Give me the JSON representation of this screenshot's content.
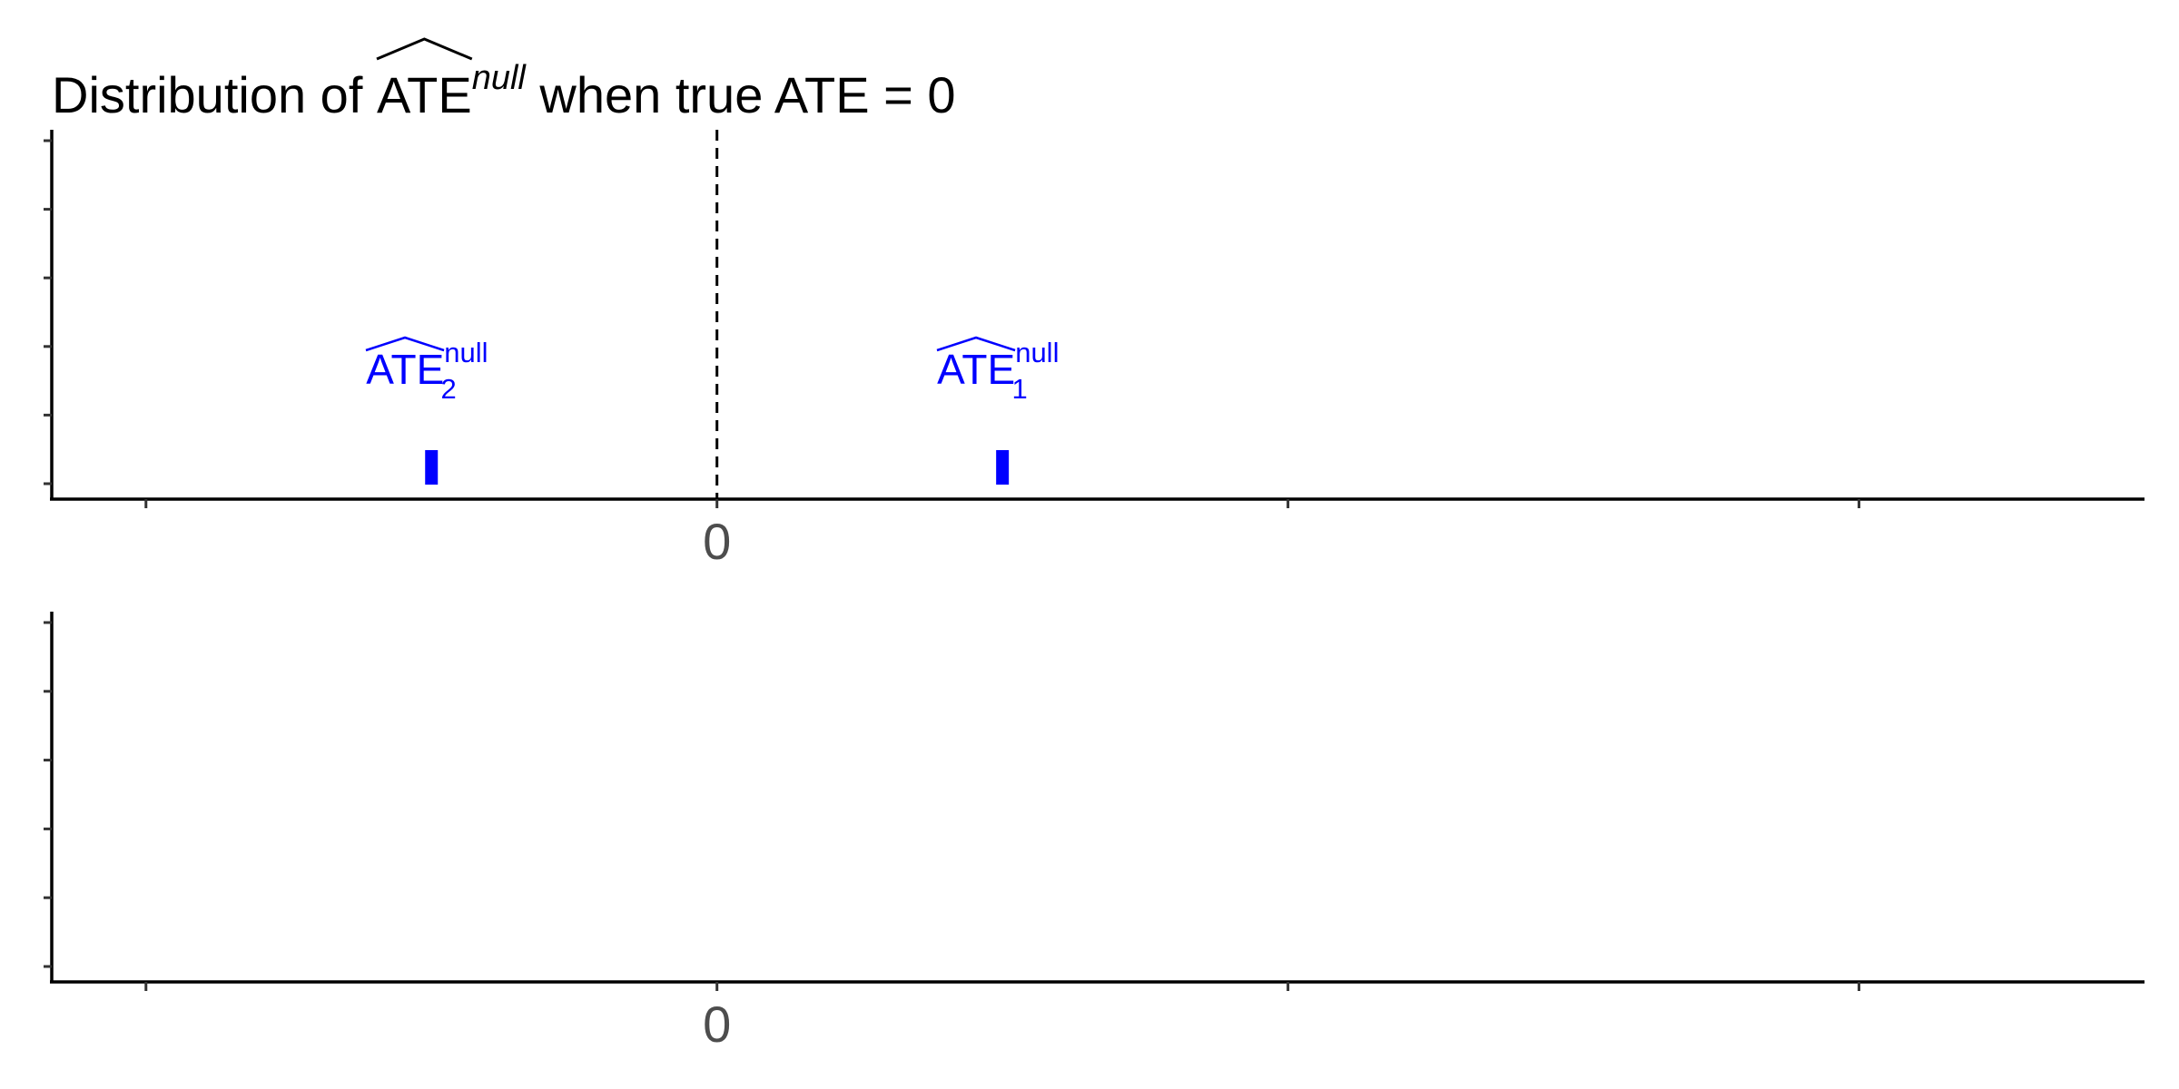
{
  "chart_data": [
    {
      "type": "scatter",
      "title": {
        "prefix": "Distribution of ",
        "hat_text": "ATE",
        "superscript": "null",
        "suffix": " when true ATE = 0"
      },
      "x_ticks": [
        -1,
        0,
        1,
        2
      ],
      "x_tick_labels": [
        "",
        "0",
        "",
        ""
      ],
      "xlim": [
        -1.165,
        2.5
      ],
      "y_ticks": 6,
      "grid": false,
      "reference_line": {
        "x": 0,
        "style": "dashed",
        "color": "#000000"
      },
      "points": [
        {
          "id": "ate2",
          "x": -0.5,
          "base": "ATE",
          "subscript": "2",
          "superscript": "null",
          "color": "#0000ff"
        },
        {
          "id": "ate1",
          "x": 0.5,
          "base": "ATE",
          "subscript": "1",
          "superscript": "null",
          "color": "#0000ff"
        }
      ]
    },
    {
      "type": "scatter",
      "x_ticks": [
        -1,
        0,
        1,
        2
      ],
      "x_tick_labels": [
        "",
        "0",
        "",
        ""
      ],
      "xlim": [
        -1.165,
        2.5
      ],
      "y_ticks": 6,
      "grid": false,
      "points": []
    }
  ],
  "colors": {
    "estimate": "#0000ff",
    "axis": "#000000",
    "tick_text": "#4d4d4d"
  }
}
